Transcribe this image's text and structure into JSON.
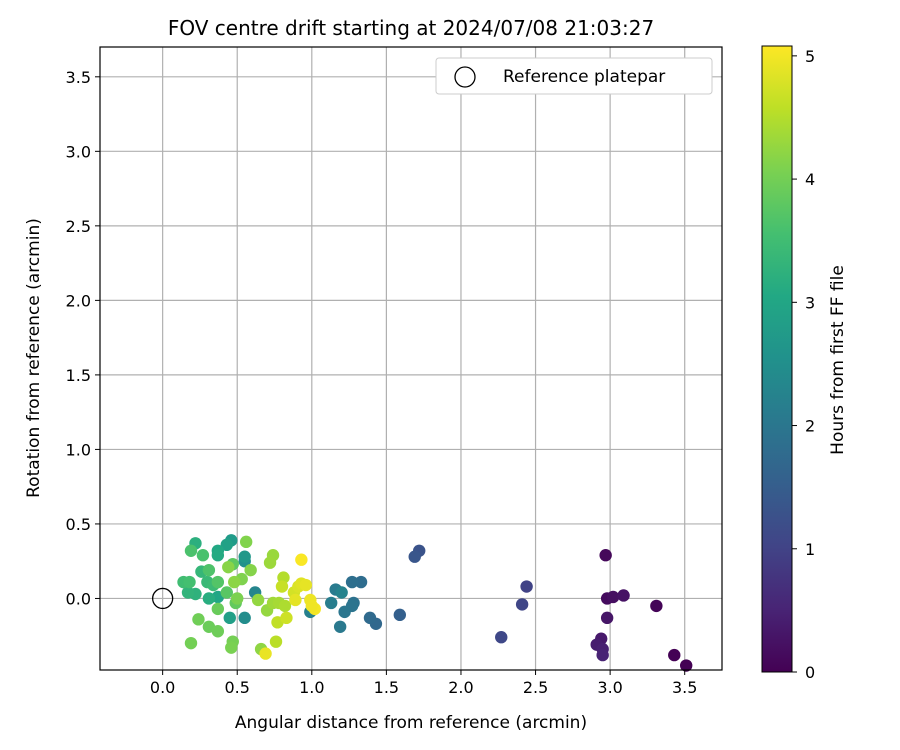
{
  "chart_data": {
    "type": "scatter",
    "title": "FOV centre drift starting at 2024/07/08 21:03:27",
    "xlabel": "Angular distance from reference (arcmin)",
    "ylabel": "Rotation from reference (arcmin)",
    "xlim": [
      -0.42,
      3.75
    ],
    "ylim": [
      -0.48,
      3.7
    ],
    "xticks": [
      "0.0",
      "0.5",
      "1.0",
      "1.5",
      "2.0",
      "2.5",
      "3.0",
      "3.5"
    ],
    "yticks": [
      "0.0",
      "0.5",
      "1.0",
      "1.5",
      "2.0",
      "2.5",
      "3.0",
      "3.5"
    ],
    "grid": true,
    "legend_position": "top-right",
    "reference": {
      "label": "Reference platepar",
      "x": 0.0,
      "y": 0.0
    },
    "colorbar": {
      "label": "Hours from first FF file",
      "range": [
        0,
        5.08
      ],
      "ticks": [
        "0",
        "1",
        "2",
        "3",
        "4",
        "5"
      ],
      "colormap": "viridis"
    },
    "points": [
      {
        "x": 2.97,
        "y": 0.29,
        "h": 0.1
      },
      {
        "x": 2.98,
        "y": 0.0,
        "h": 0.15
      },
      {
        "x": 3.02,
        "y": 0.01,
        "h": 0.2
      },
      {
        "x": 3.09,
        "y": 0.02,
        "h": 0.25
      },
      {
        "x": 2.98,
        "y": -0.13,
        "h": 0.3
      },
      {
        "x": 3.31,
        "y": -0.05,
        "h": 0.05
      },
      {
        "x": 2.94,
        "y": -0.27,
        "h": 0.35
      },
      {
        "x": 2.91,
        "y": -0.31,
        "h": 0.4
      },
      {
        "x": 2.95,
        "y": -0.34,
        "h": 0.45
      },
      {
        "x": 2.95,
        "y": -0.38,
        "h": 0.5
      },
      {
        "x": 3.43,
        "y": -0.38,
        "h": 0.02
      },
      {
        "x": 3.51,
        "y": -0.45,
        "h": 0.0
      },
      {
        "x": 2.44,
        "y": 0.08,
        "h": 1.0
      },
      {
        "x": 2.41,
        "y": -0.04,
        "h": 1.05
      },
      {
        "x": 2.27,
        "y": -0.26,
        "h": 1.1
      },
      {
        "x": 1.72,
        "y": 0.32,
        "h": 1.3
      },
      {
        "x": 1.69,
        "y": 0.28,
        "h": 1.35
      },
      {
        "x": 1.59,
        "y": -0.11,
        "h": 1.55
      },
      {
        "x": 1.43,
        "y": -0.17,
        "h": 1.7
      },
      {
        "x": 1.39,
        "y": -0.13,
        "h": 1.75
      },
      {
        "x": 1.33,
        "y": 0.11,
        "h": 1.8
      },
      {
        "x": 1.27,
        "y": 0.11,
        "h": 1.85
      },
      {
        "x": 1.28,
        "y": -0.03,
        "h": 1.9
      },
      {
        "x": 1.27,
        "y": -0.05,
        "h": 1.95
      },
      {
        "x": 1.22,
        "y": -0.09,
        "h": 2.0
      },
      {
        "x": 1.19,
        "y": -0.19,
        "h": 2.05
      },
      {
        "x": 1.16,
        "y": 0.06,
        "h": 2.1
      },
      {
        "x": 1.13,
        "y": -0.03,
        "h": 2.15
      },
      {
        "x": 0.99,
        "y": -0.09,
        "h": 2.2
      },
      {
        "x": 1.2,
        "y": 0.04,
        "h": 2.25
      },
      {
        "x": 0.62,
        "y": 0.04,
        "h": 2.3
      },
      {
        "x": 0.55,
        "y": -0.13,
        "h": 2.45
      },
      {
        "x": 0.55,
        "y": 0.25,
        "h": 2.55
      },
      {
        "x": 0.55,
        "y": 0.28,
        "h": 2.7
      },
      {
        "x": 0.46,
        "y": 0.39,
        "h": 2.75
      },
      {
        "x": 0.45,
        "y": -0.13,
        "h": 2.85
      },
      {
        "x": 0.43,
        "y": 0.36,
        "h": 2.9
      },
      {
        "x": 0.37,
        "y": 0.01,
        "h": 3.0
      },
      {
        "x": 0.37,
        "y": 0.32,
        "h": 3.05
      },
      {
        "x": 0.37,
        "y": 0.29,
        "h": 3.1
      },
      {
        "x": 0.31,
        "y": 0.0,
        "h": 3.15
      },
      {
        "x": 0.22,
        "y": 0.37,
        "h": 3.2
      },
      {
        "x": 0.22,
        "y": 0.03,
        "h": 3.25
      },
      {
        "x": 0.17,
        "y": 0.04,
        "h": 3.3
      },
      {
        "x": 0.26,
        "y": 0.18,
        "h": 3.35
      },
      {
        "x": 0.3,
        "y": 0.11,
        "h": 3.4
      },
      {
        "x": 0.34,
        "y": 0.09,
        "h": 3.45
      },
      {
        "x": 0.14,
        "y": 0.11,
        "h": 3.5
      },
      {
        "x": 0.18,
        "y": 0.11,
        "h": 3.55
      },
      {
        "x": 0.27,
        "y": 0.29,
        "h": 3.6
      },
      {
        "x": 0.19,
        "y": 0.32,
        "h": 3.62
      },
      {
        "x": 0.31,
        "y": 0.19,
        "h": 3.65
      },
      {
        "x": 0.37,
        "y": 0.11,
        "h": 3.7
      },
      {
        "x": 0.43,
        "y": 0.04,
        "h": 3.75
      },
      {
        "x": 0.47,
        "y": 0.23,
        "h": 3.8
      },
      {
        "x": 0.49,
        "y": -0.03,
        "h": 3.85
      },
      {
        "x": 0.37,
        "y": -0.07,
        "h": 3.9
      },
      {
        "x": 0.31,
        "y": -0.19,
        "h": 3.92
      },
      {
        "x": 0.37,
        "y": -0.22,
        "h": 3.95
      },
      {
        "x": 0.24,
        "y": -0.14,
        "h": 3.97
      },
      {
        "x": 0.19,
        "y": -0.3,
        "h": 4.0
      },
      {
        "x": 0.47,
        "y": -0.29,
        "h": 4.02
      },
      {
        "x": 0.46,
        "y": -0.33,
        "h": 4.05
      },
      {
        "x": 0.5,
        "y": 0.0,
        "h": 4.07
      },
      {
        "x": 0.53,
        "y": 0.13,
        "h": 4.1
      },
      {
        "x": 0.56,
        "y": 0.38,
        "h": 4.12
      },
      {
        "x": 0.59,
        "y": 0.19,
        "h": 4.15
      },
      {
        "x": 0.44,
        "y": 0.21,
        "h": 4.17
      },
      {
        "x": 0.48,
        "y": 0.11,
        "h": 4.2
      },
      {
        "x": 0.66,
        "y": -0.34,
        "h": 4.22
      },
      {
        "x": 0.64,
        "y": -0.01,
        "h": 4.25
      },
      {
        "x": 0.7,
        "y": -0.08,
        "h": 4.27
      },
      {
        "x": 0.74,
        "y": 0.29,
        "h": 4.3
      },
      {
        "x": 0.72,
        "y": 0.24,
        "h": 4.32
      },
      {
        "x": 0.74,
        "y": -0.03,
        "h": 4.35
      },
      {
        "x": 0.78,
        "y": -0.03,
        "h": 4.4
      },
      {
        "x": 0.82,
        "y": -0.05,
        "h": 4.45
      },
      {
        "x": 0.81,
        "y": 0.14,
        "h": 4.5
      },
      {
        "x": 0.76,
        "y": -0.29,
        "h": 4.55
      },
      {
        "x": 0.77,
        "y": -0.16,
        "h": 4.6
      },
      {
        "x": 0.8,
        "y": 0.08,
        "h": 4.65
      },
      {
        "x": 0.83,
        "y": -0.13,
        "h": 4.7
      },
      {
        "x": 0.88,
        "y": 0.04,
        "h": 4.75
      },
      {
        "x": 0.91,
        "y": 0.08,
        "h": 4.8
      },
      {
        "x": 0.93,
        "y": 0.1,
        "h": 4.85
      },
      {
        "x": 0.96,
        "y": 0.09,
        "h": 4.9
      },
      {
        "x": 0.99,
        "y": -0.01,
        "h": 4.95
      },
      {
        "x": 1.02,
        "y": -0.07,
        "h": 5.0
      },
      {
        "x": 0.93,
        "y": 0.26,
        "h": 5.05
      },
      {
        "x": 0.69,
        "y": -0.37,
        "h": 4.92
      },
      {
        "x": 0.89,
        "y": -0.01,
        "h": 4.88
      },
      {
        "x": 1.0,
        "y": -0.05,
        "h": 4.97
      }
    ]
  }
}
